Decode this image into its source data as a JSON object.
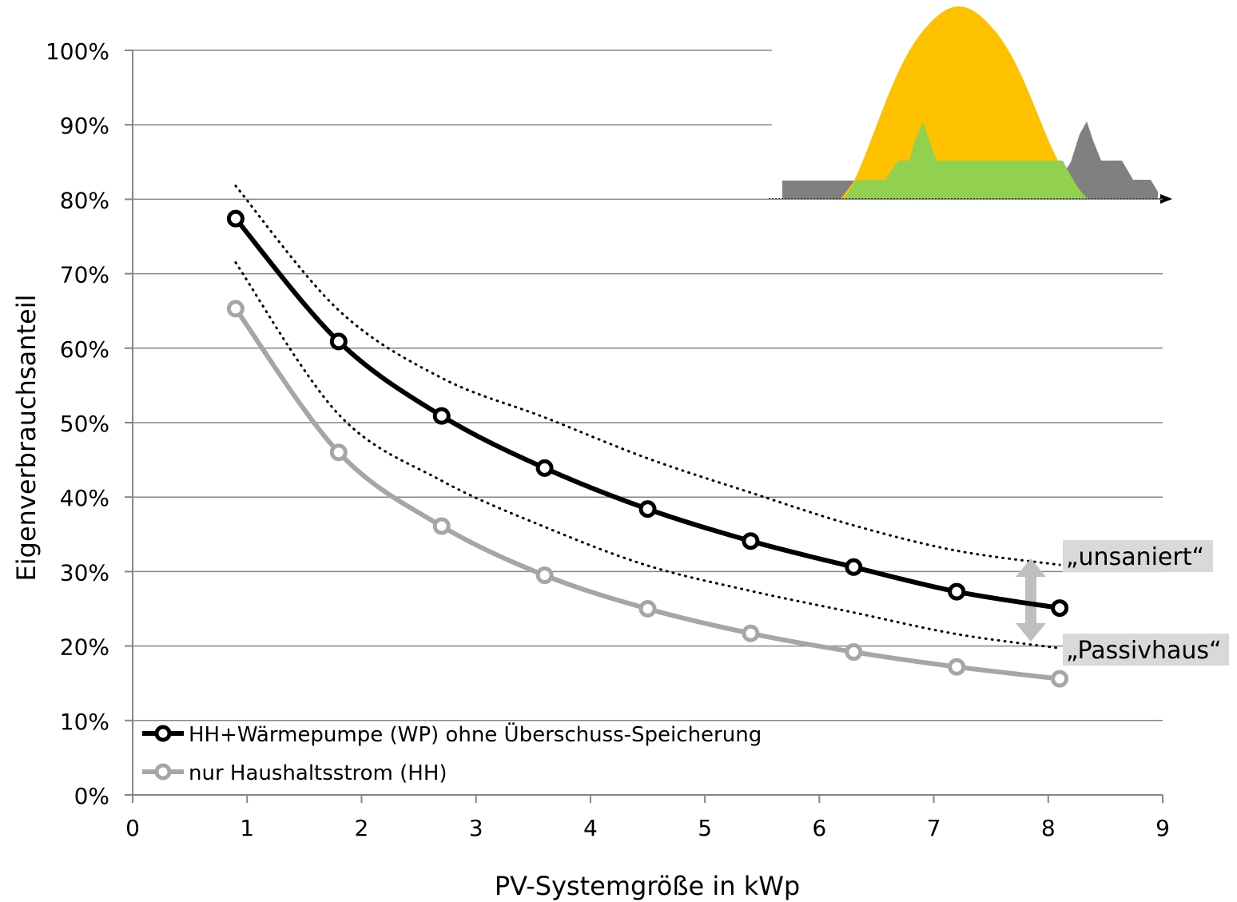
{
  "chart_data": {
    "type": "line",
    "title": "",
    "xlabel": "PV-Systemgröße in kWp",
    "ylabel": "Eigenverbrauchsanteil",
    "xlim": [
      0,
      9
    ],
    "ylim": [
      0,
      1
    ],
    "x_ticks": [
      0,
      1,
      2,
      3,
      4,
      5,
      6,
      7,
      8,
      9
    ],
    "x_tick_labels": [
      "0",
      "1",
      "2",
      "3",
      "4",
      "5",
      "6",
      "7",
      "8",
      "9"
    ],
    "y_ticks": [
      0,
      0.1,
      0.2,
      0.3,
      0.4,
      0.5,
      0.6,
      0.7,
      0.8,
      0.9,
      1.0
    ],
    "y_tick_labels": [
      "0%",
      "10%",
      "20%",
      "30%",
      "40%",
      "50%",
      "60%",
      "70%",
      "80%",
      "90%",
      "100%"
    ],
    "grid": "horizontal",
    "legend_position": "bottom-left",
    "series": [
      {
        "name": "HH+Wärmepumpe (WP) ohne Überschuss-Speicherung",
        "color": "#000000",
        "x": [
          0.9,
          1.8,
          2.7,
          3.6,
          4.5,
          5.4,
          6.3,
          7.2,
          8.1
        ],
        "y": [
          0.774,
          0.609,
          0.509,
          0.439,
          0.384,
          0.341,
          0.306,
          0.273,
          0.251
        ]
      },
      {
        "name": "nur Haushaltsstrom (HH)",
        "color": "#a6a6a6",
        "x": [
          0.9,
          1.8,
          2.7,
          3.6,
          4.5,
          5.4,
          6.3,
          7.2,
          8.1
        ],
        "y": [
          0.653,
          0.46,
          0.361,
          0.295,
          0.25,
          0.217,
          0.192,
          0.172,
          0.156
        ]
      }
    ],
    "bounds": [
      {
        "label": "„unsaniert“",
        "x": [
          0.9,
          1.8,
          2.7,
          3.6,
          4.5,
          5.4,
          6.3,
          7.2,
          8.1
        ],
        "y": [
          0.818,
          0.651,
          0.56,
          0.507,
          0.452,
          0.406,
          0.362,
          0.328,
          0.309
        ]
      },
      {
        "label": "„Passivhaus“",
        "x": [
          0.9,
          1.8,
          2.7,
          3.6,
          4.5,
          5.4,
          6.3,
          7.2,
          8.1
        ],
        "y": [
          0.715,
          0.511,
          0.422,
          0.36,
          0.308,
          0.274,
          0.245,
          0.216,
          0.197
        ]
      }
    ],
    "colors": {
      "pv_generation": "#fdc100",
      "self_consumption": "#92d050",
      "household_load": "#808080",
      "arrow": "#bfbfbf",
      "label_background": "#d9d9d9",
      "grid": "#868686"
    }
  }
}
